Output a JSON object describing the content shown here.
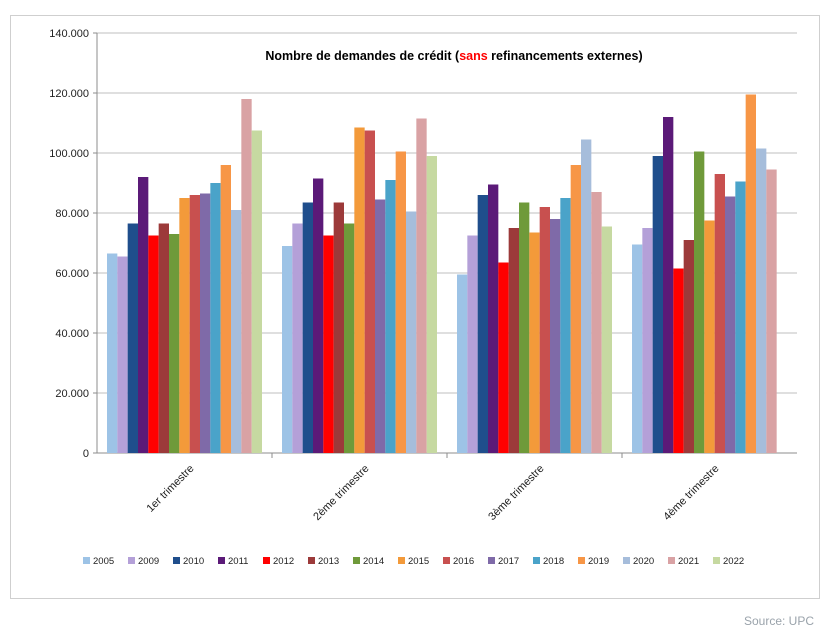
{
  "chart_data": {
    "type": "bar",
    "title_parts": {
      "before": "Nombre de demandes de crédit (",
      "highlight": "sans",
      "after": " refinancements externes)"
    },
    "title_color": "#000000",
    "highlight_color": "#ff0000",
    "xlabel": "",
    "ylabel": "",
    "ylim": [
      0,
      140000
    ],
    "y_ticks": [
      {
        "value": 0,
        "label": "0"
      },
      {
        "value": 20000,
        "label": "20.000"
      },
      {
        "value": 40000,
        "label": "40.000"
      },
      {
        "value": 60000,
        "label": "60.000"
      },
      {
        "value": 80000,
        "label": "80.000"
      },
      {
        "value": 100000,
        "label": "100.000"
      },
      {
        "value": 120000,
        "label": "120.000"
      },
      {
        "value": 140000,
        "label": "140.000"
      }
    ],
    "grid": true,
    "legend_position": "bottom",
    "categories": [
      "1er trimestre",
      "2ème trimestre",
      "3ème trimestre",
      "4ème trimestre"
    ],
    "series": [
      {
        "name": "2005",
        "color": "#9dc3e6",
        "values": [
          66500,
          69000,
          59500,
          69500
        ]
      },
      {
        "name": "2009",
        "color": "#b4a0d8",
        "values": [
          65500,
          76500,
          72500,
          75000
        ]
      },
      {
        "name": "2010",
        "color": "#1f4e8c",
        "values": [
          76500,
          83500,
          86000,
          99000
        ]
      },
      {
        "name": "2011",
        "color": "#5b1a78",
        "values": [
          92000,
          91500,
          89500,
          112000
        ]
      },
      {
        "name": "2012",
        "color": "#ff0000",
        "values": [
          72500,
          72500,
          63500,
          61500
        ]
      },
      {
        "name": "2013",
        "color": "#9c3a3a",
        "values": [
          76500,
          83500,
          75000,
          71000
        ]
      },
      {
        "name": "2014",
        "color": "#6f9a3a",
        "values": [
          73000,
          76500,
          83500,
          100500
        ]
      },
      {
        "name": "2015",
        "color": "#f39a3a",
        "values": [
          85000,
          108500,
          73500,
          77500
        ]
      },
      {
        "name": "2016",
        "color": "#c8504f",
        "values": [
          86000,
          107500,
          82000,
          93000
        ]
      },
      {
        "name": "2017",
        "color": "#7f6aa8",
        "values": [
          86500,
          84500,
          78000,
          85500
        ]
      },
      {
        "name": "2018",
        "color": "#4aa3c9",
        "values": [
          90000,
          91000,
          85000,
          90500
        ]
      },
      {
        "name": "2019",
        "color": "#f79646",
        "values": [
          96000,
          100500,
          96000,
          119500
        ]
      },
      {
        "name": "2020",
        "color": "#a6bddb",
        "values": [
          81000,
          80500,
          104500,
          101500
        ]
      },
      {
        "name": "2021",
        "color": "#d9a2a4",
        "values": [
          118000,
          111500,
          87000,
          94500
        ]
      },
      {
        "name": "2022",
        "color": "#c6d9a1",
        "values": [
          107500,
          99000,
          75500,
          null
        ]
      }
    ]
  },
  "source_label": "Source: UPC"
}
